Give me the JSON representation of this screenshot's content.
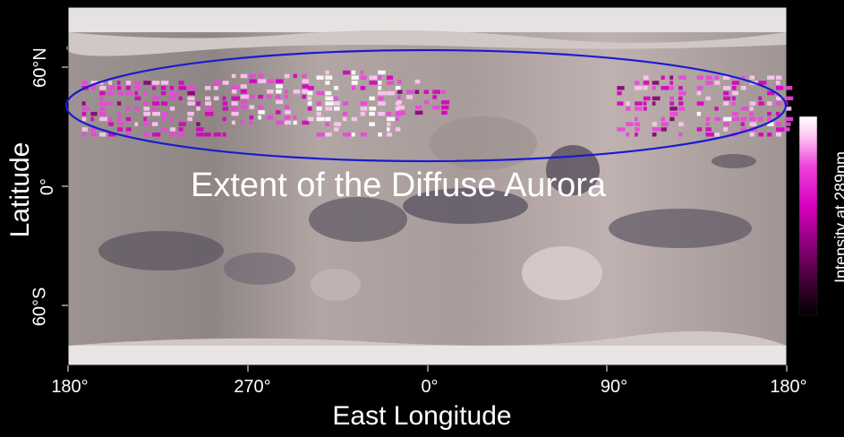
{
  "chart_data": {
    "type": "heatmap",
    "xlabel": "East Longitude",
    "ylabel": "Latitude",
    "x_ticks": [
      "180°",
      "270°",
      "0°",
      "90°",
      "180°"
    ],
    "y_ticks": [
      "60°N",
      "0°",
      "60°S"
    ],
    "colorbar_label": "Intensity at 289nm",
    "annotation": "Extent of the Diffuse Aurora",
    "ellipse_color": "#1a1ad0",
    "colormap": [
      "#000000",
      "#3a0030",
      "#8a0078",
      "#d800c0",
      "#ee44dd",
      "#ffc6f2",
      "#ffffff"
    ],
    "aurora_longitude_range": [
      180,
      540
    ],
    "aurora_latitude_range": [
      25,
      60
    ],
    "bands": [
      {
        "lon": [
          187,
          262
        ],
        "lat": [
          27,
          55
        ],
        "intensity": 0.65
      },
      {
        "lon": [
          262,
          300
        ],
        "lat": [
          33,
          58
        ],
        "intensity": 0.75
      },
      {
        "lon": [
          300,
          345
        ],
        "lat": [
          27,
          60
        ],
        "intensity": 0.8
      },
      {
        "lon": [
          345,
          370
        ],
        "lat": [
          38,
          56
        ],
        "intensity": 0.6
      },
      {
        "lon": [
          455,
          490
        ],
        "lat": [
          27,
          57
        ],
        "intensity": 0.6
      },
      {
        "lon": [
          495,
          540
        ],
        "lat": [
          27,
          56
        ],
        "intensity": 0.7
      }
    ]
  }
}
